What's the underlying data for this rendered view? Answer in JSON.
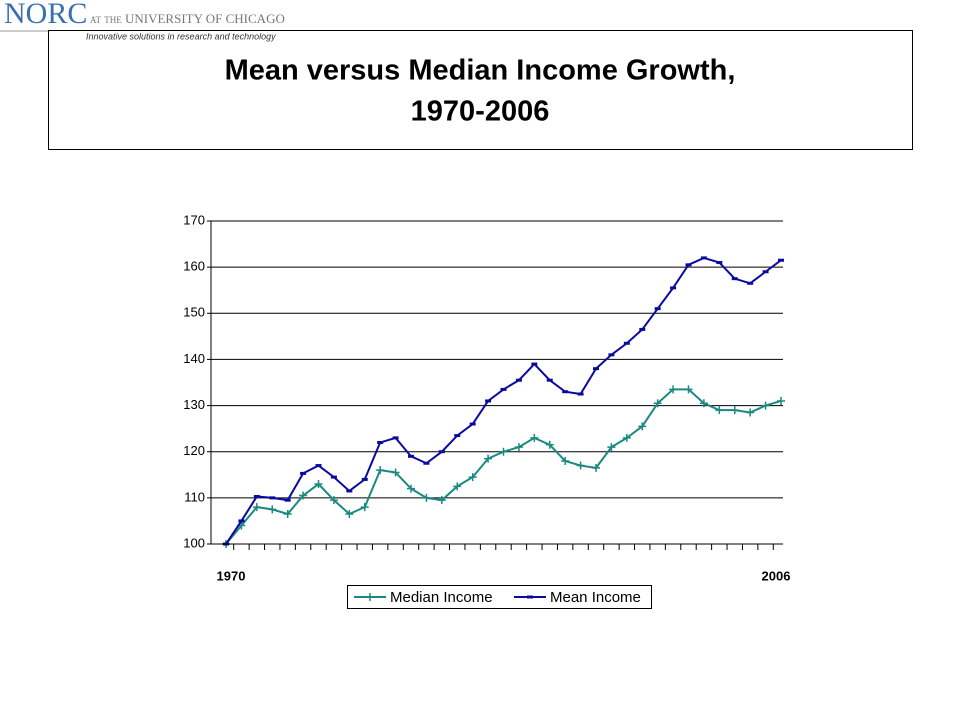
{
  "header": {
    "logo": "NORC",
    "affiliation": "at the UNIVERSITY OF CHICAGO",
    "tagline": "Innovative solutions in research and technology"
  },
  "chart_data": {
    "type": "line",
    "title": [
      "Mean versus Median Income Growth,",
      "1970-2006"
    ],
    "categories": [
      "1970",
      null,
      null,
      null,
      null,
      null,
      null,
      null,
      null,
      null,
      null,
      null,
      null,
      null,
      null,
      null,
      null,
      null,
      null,
      null,
      null,
      null,
      null,
      null,
      null,
      null,
      null,
      null,
      null,
      null,
      null,
      null,
      null,
      null,
      null,
      null,
      "2006"
    ],
    "series": [
      {
        "name": "Median Income",
        "color": "#1a8a80",
        "marker": "plus",
        "values": [
          100,
          104,
          108,
          107.5,
          106.5,
          110.5,
          113,
          109.5,
          106.5,
          108,
          116,
          115.5,
          112,
          110,
          109.5,
          112.5,
          114.5,
          118.5,
          120,
          121,
          123,
          121.5,
          118,
          117,
          116.5,
          121,
          123,
          125.5,
          130.5,
          133.5,
          133.5,
          130.5,
          129,
          129,
          128.5,
          130,
          131
        ]
      },
      {
        "name": "Mean Income",
        "color": "#0a0aa0",
        "marker": "dash",
        "values": [
          100,
          105,
          110.3,
          110,
          109.5,
          115.3,
          117,
          114.5,
          111.5,
          114,
          122,
          123,
          119,
          117.5,
          120,
          123.5,
          126,
          131,
          133.5,
          135.5,
          139,
          135.5,
          133,
          132.5,
          138,
          141,
          143.5,
          146.5,
          151,
          155.5,
          160.5,
          162,
          161,
          157.5,
          156.5,
          159,
          161.5
        ]
      }
    ],
    "ylim": [
      100,
      170
    ],
    "yticks": [
      100,
      110,
      120,
      130,
      140,
      150,
      160,
      170
    ],
    "grid": true,
    "legend": "bottom"
  }
}
